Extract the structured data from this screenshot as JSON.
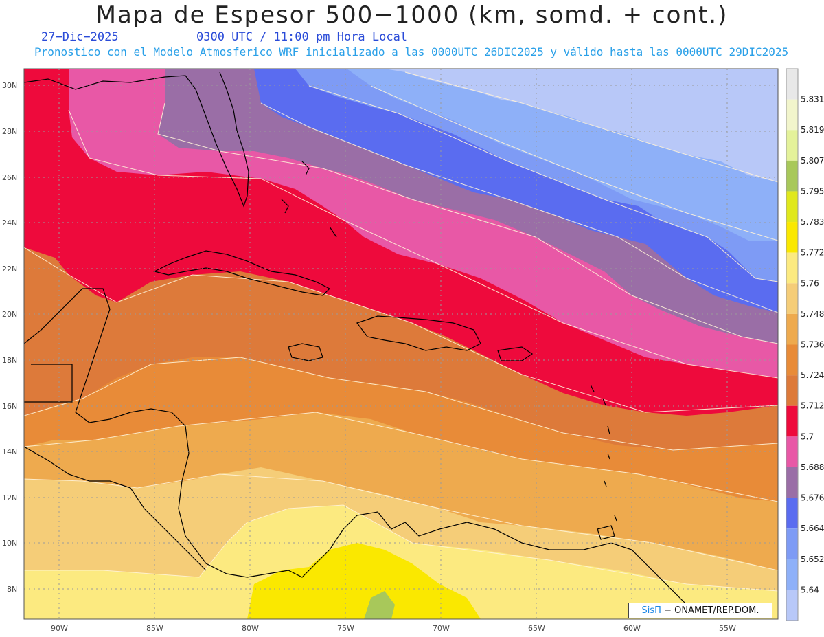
{
  "header": {
    "title": "Mapa de Espesor 500−1000 (km, somd. + cont.)",
    "date": "27−Dic−2025",
    "time": "0300 UTC / 11:00 pm Hora Local",
    "description": "Pronostico con el Modelo Atmosferico WRF inicializado a las 0000UTC_26DIC2025 y válido hasta las  0000UTC_29DIC2025"
  },
  "map": {
    "lat_labels": [
      "30N",
      "28N",
      "26N",
      "24N",
      "22N",
      "20N",
      "18N",
      "16N",
      "14N",
      "12N",
      "10N",
      "8N"
    ],
    "lon_labels": [
      "90W",
      "85W",
      "80W",
      "75W",
      "70W",
      "65W",
      "60W",
      "55W"
    ]
  },
  "colorbar": {
    "levels": [
      "5.831",
      "5.819",
      "5.807",
      "5.795",
      "5.783",
      "5.772",
      "5.76",
      "5.748",
      "5.736",
      "5.724",
      "5.712",
      "5.7",
      "5.688",
      "5.676",
      "5.664",
      "5.652",
      "5.64"
    ],
    "colors": [
      "#e8e8e8",
      "#f2f5cc",
      "#e4f29a",
      "#a8c85a",
      "#e0e81c",
      "#fae800",
      "#fcea80",
      "#f5cd78",
      "#eeaa4e",
      "#e88b38",
      "#dd7a3a",
      "#ee0a3c",
      "#e858a6",
      "#9a6ea6",
      "#5a6cf0",
      "#7e9bf5",
      "#8eb0f8",
      "#b8c8f8"
    ]
  },
  "credit": {
    "brand": "SisΠ",
    "text": " − ONAMET/REP.DOM."
  }
}
